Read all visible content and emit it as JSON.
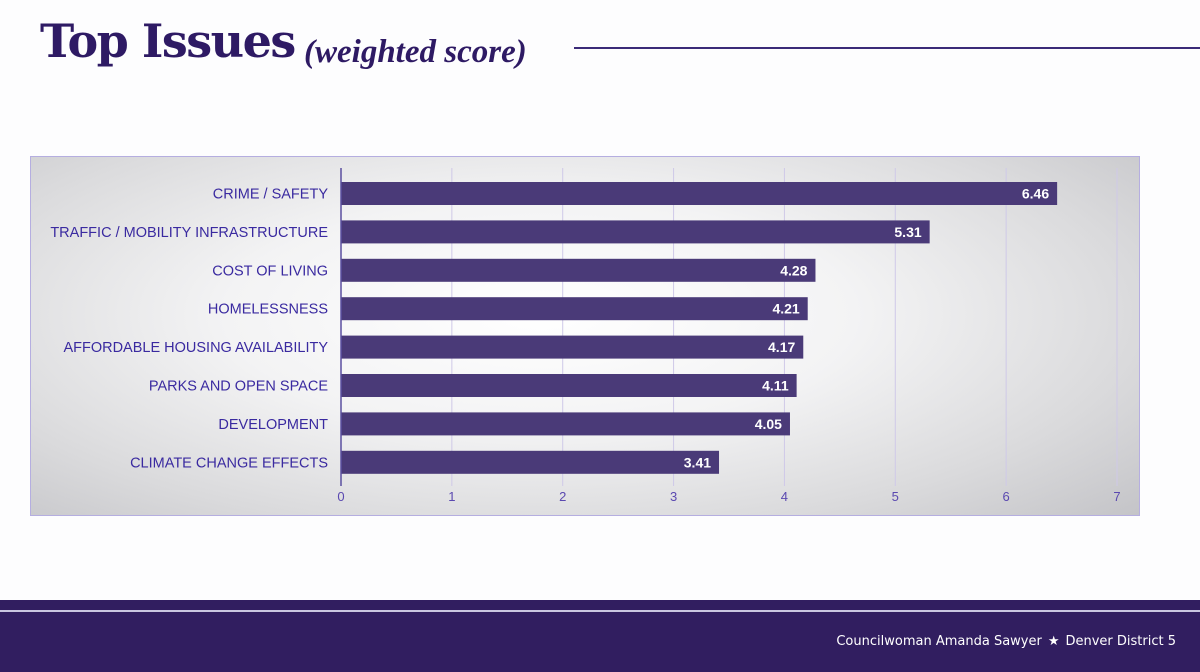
{
  "header": {
    "title": "Top Issues",
    "subtitle": "(weighted score)"
  },
  "colors": {
    "bar": "#4a3a78",
    "category_label": "#3a2aa0",
    "value_label": "#ffffff",
    "axis_tick": "#5a48b0",
    "grid": "#cfc9e8",
    "title": "#2e1a64",
    "footer_bg": "#311e60"
  },
  "chart_data": {
    "type": "bar",
    "orientation": "horizontal",
    "title": "Top Issues (weighted score)",
    "xlabel": "",
    "ylabel": "",
    "categories": [
      "CRIME / SAFETY",
      "TRAFFIC / MOBILITY INFRASTRUCTURE",
      "COST OF LIVING",
      "HOMELESSNESS",
      "AFFORDABLE HOUSING AVAILABILITY",
      "PARKS AND OPEN SPACE",
      "DEVELOPMENT",
      "CLIMATE CHANGE EFFECTS"
    ],
    "values": [
      6.46,
      5.31,
      4.28,
      4.21,
      4.17,
      4.11,
      4.05,
      3.41
    ],
    "value_labels": [
      "6.46",
      "5.31",
      "4.28",
      "4.21",
      "4.17",
      "4.11",
      "4.05",
      "3.41"
    ],
    "xlim": [
      0,
      7
    ],
    "xticks": [
      0,
      1,
      2,
      3,
      4,
      5,
      6,
      7
    ],
    "xtick_labels": [
      "0",
      "1",
      "2",
      "3",
      "4",
      "5",
      "6",
      "7"
    ],
    "grid": true,
    "legend": "none"
  },
  "footer": {
    "name": "Councilwoman Amanda Sawyer",
    "separator": "★",
    "district": "Denver District 5"
  }
}
